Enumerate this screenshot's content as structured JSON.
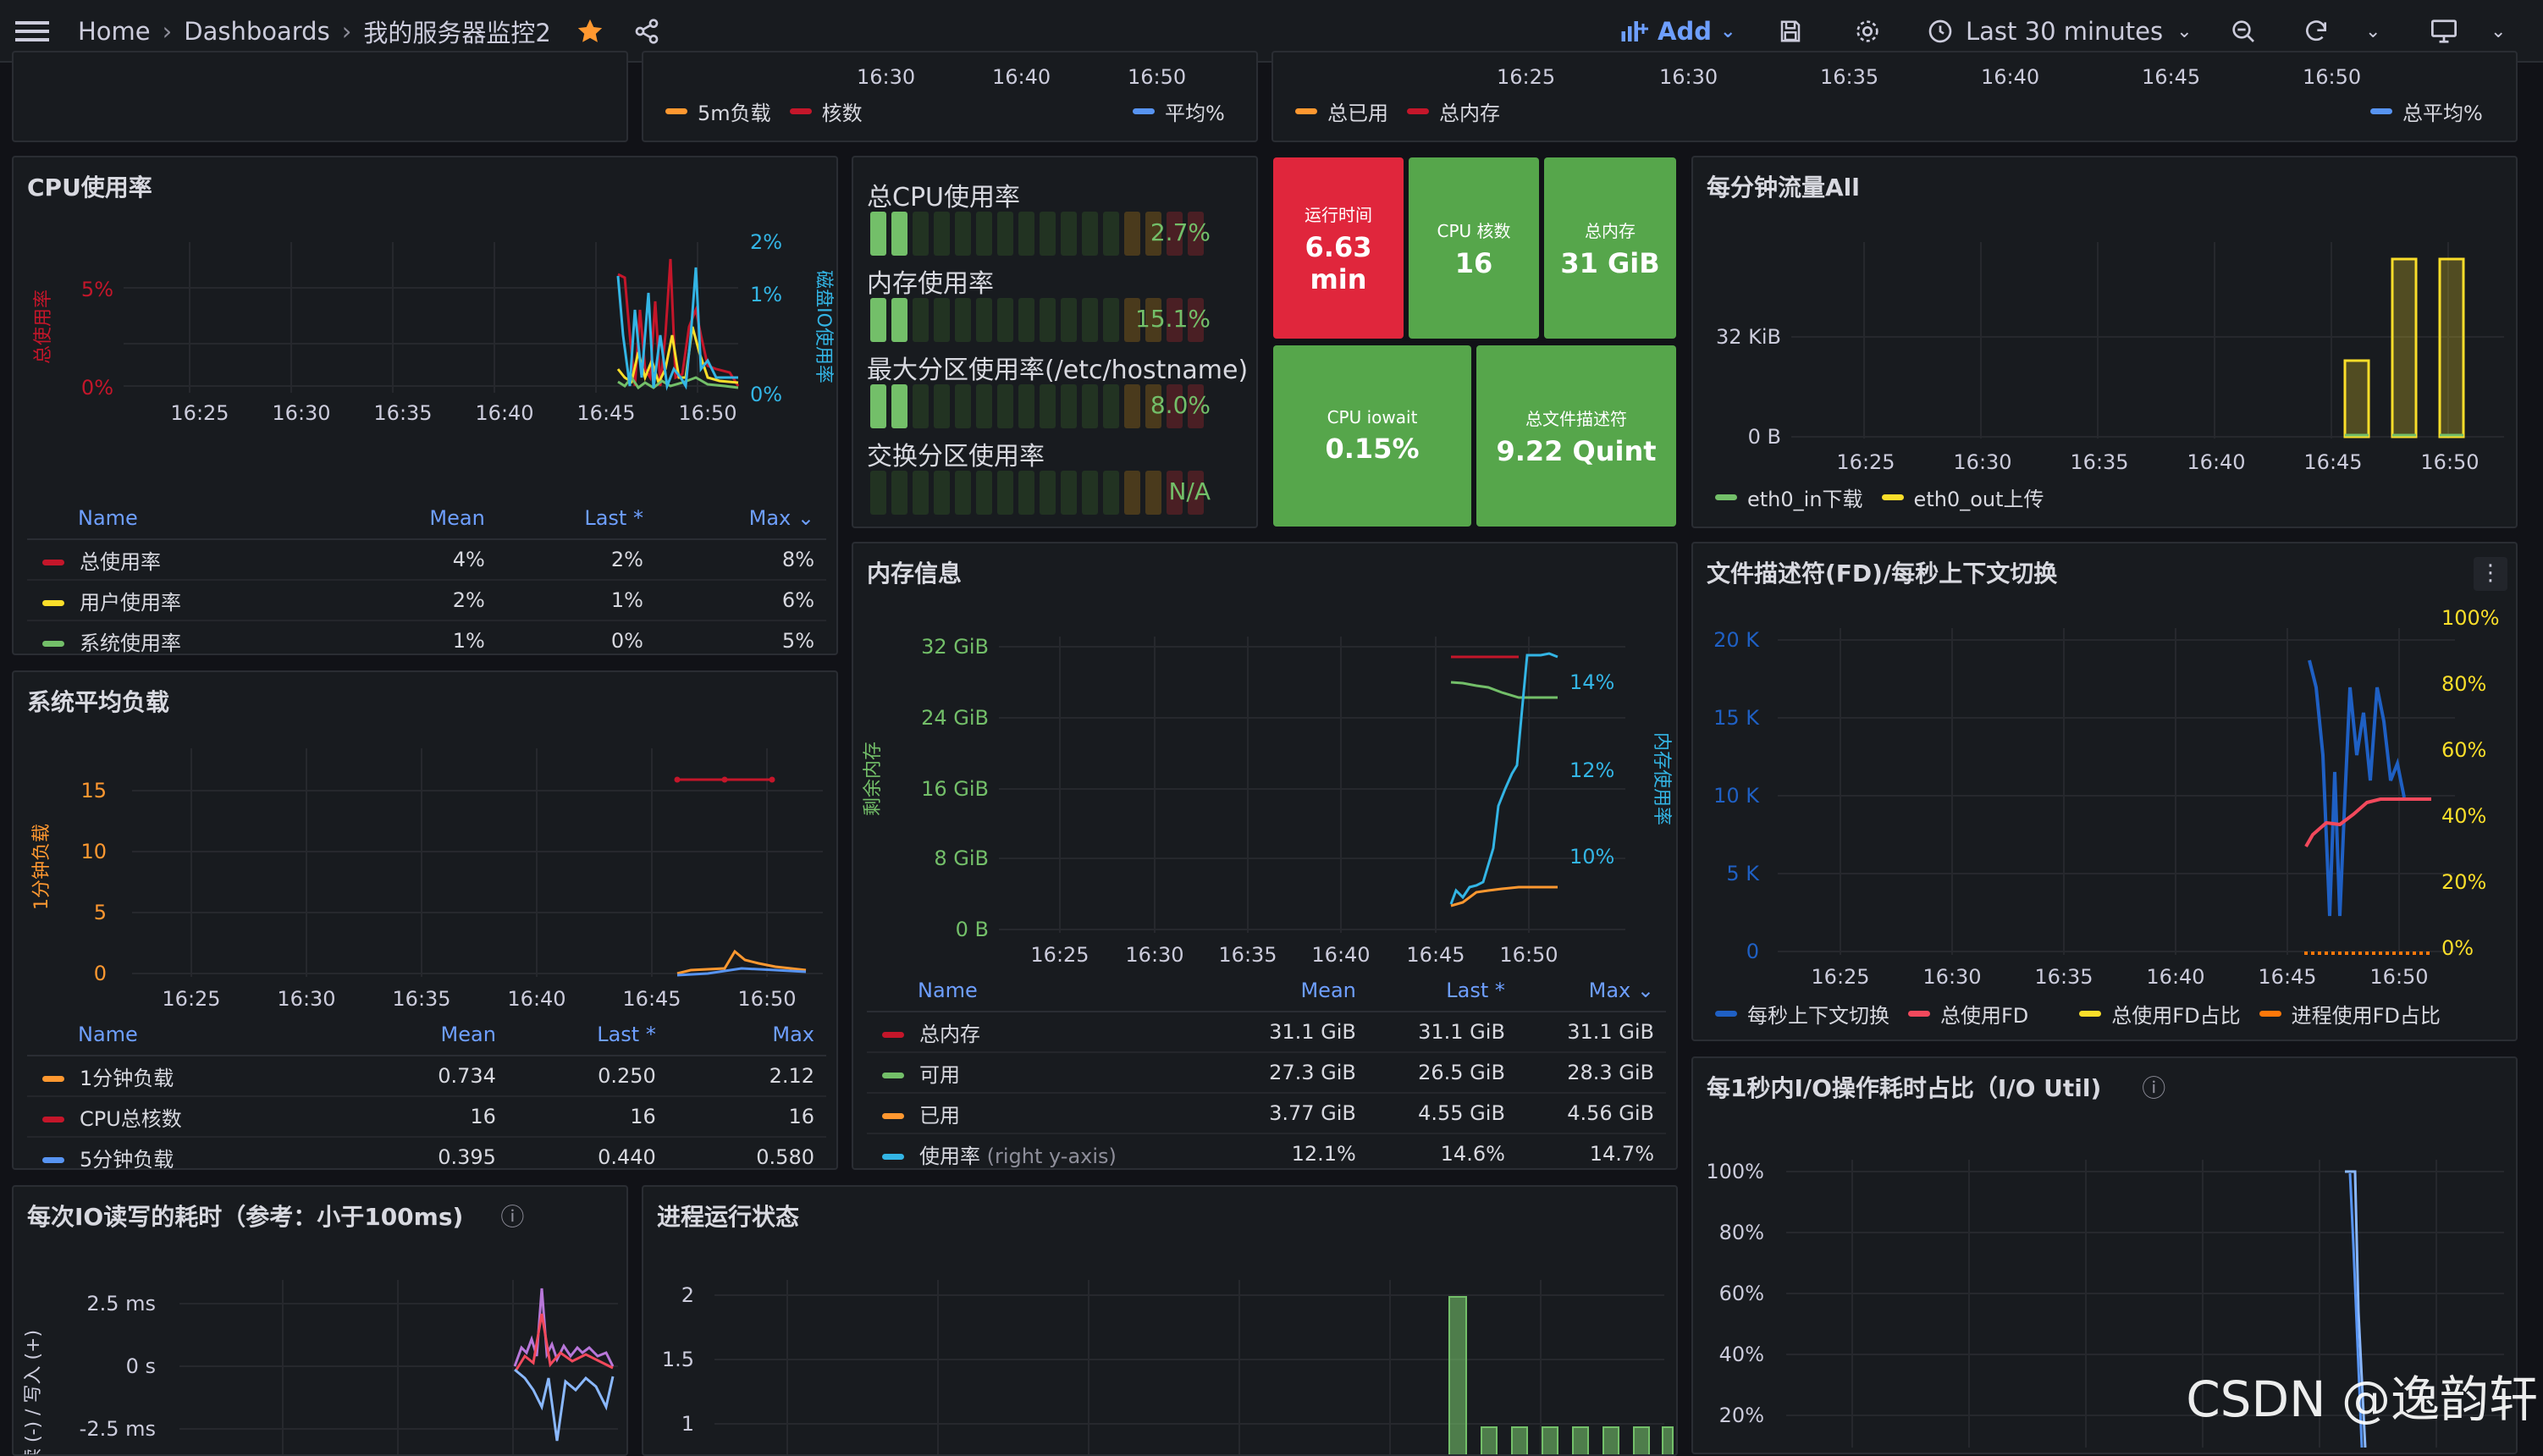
{
  "topbar": {
    "home": "Home",
    "dashboards": "Dashboards",
    "dashboard_title": "我的服务器监控2",
    "add_label": "Add",
    "time_range": "Last 30 minutes"
  },
  "top_strip": {
    "mid_ticks": [
      "16:30",
      "16:40",
      "16:50"
    ],
    "mid_legend": [
      "5m负载",
      "核数",
      "平均%"
    ],
    "right_ticks": [
      "16:25",
      "16:30",
      "16:35",
      "16:40",
      "16:45",
      "16:50"
    ],
    "right_legend": [
      "总已用",
      "总内存",
      "总平均%"
    ]
  },
  "cpu_panel": {
    "title": "CPU使用率",
    "left_axis_label": "总使用率",
    "right_axis_label": "磁盘IO使用率",
    "y_left_ticks": [
      "5%",
      "0%"
    ],
    "y_right_ticks": [
      "2%",
      "1%",
      "0%"
    ],
    "x_ticks": [
      "16:25",
      "16:30",
      "16:35",
      "16:40",
      "16:45",
      "16:50"
    ],
    "table": {
      "headers": [
        "Name",
        "Mean",
        "Last *",
        "Max"
      ],
      "rows": [
        {
          "name": "总使用率",
          "mean": "4%",
          "last": "2%",
          "max": "8%",
          "color": "#c4162a"
        },
        {
          "name": "用户使用率",
          "mean": "2%",
          "last": "1%",
          "max": "6%",
          "color": "#fade2a"
        },
        {
          "name": "系统使用率",
          "mean": "1%",
          "last": "0%",
          "max": "5%",
          "color": "#73bf69"
        }
      ]
    }
  },
  "gauges": {
    "items": [
      {
        "label": "总CPU使用率",
        "value": "2.7%",
        "fill_ratio": 0.027
      },
      {
        "label": "内存使用率",
        "value": "15.1%",
        "fill_ratio": 0.151
      },
      {
        "label": "最大分区使用率(/etc/hostname)",
        "value": "8.0%",
        "fill_ratio": 0.08
      },
      {
        "label": "交换分区使用率",
        "value": "N/A",
        "fill_ratio": 0
      }
    ]
  },
  "stats": {
    "uptime": {
      "label": "运行时间",
      "value": "6.63",
      "unit": "min"
    },
    "cores": {
      "label": "CPU 核数",
      "value": "16"
    },
    "mem_total": {
      "label": "总内存",
      "value": "31 GiB"
    },
    "iowait": {
      "label": "CPU iowait",
      "value": "0.15%"
    },
    "fd_total": {
      "label": "总文件描述符",
      "value": "9.22 Quint"
    }
  },
  "traffic_panel": {
    "title": "每分钟流量All",
    "y_ticks": [
      "32 KiB",
      "0 B"
    ],
    "x_ticks": [
      "16:25",
      "16:30",
      "16:35",
      "16:40",
      "16:45",
      "16:50"
    ],
    "legend": [
      "eth0_in下载",
      "eth0_out上传"
    ]
  },
  "load_panel": {
    "title": "系统平均负载",
    "axis_label": "1分钟负载",
    "y_ticks": [
      "15",
      "10",
      "5",
      "0"
    ],
    "x_ticks": [
      "16:25",
      "16:30",
      "16:35",
      "16:40",
      "16:45",
      "16:50"
    ],
    "table": {
      "headers": [
        "Name",
        "Mean",
        "Last *",
        "Max"
      ],
      "rows": [
        {
          "name": "1分钟负载",
          "mean": "0.734",
          "last": "0.250",
          "max": "2.12",
          "color": "#ff9830"
        },
        {
          "name": "CPU总核数",
          "mean": "16",
          "last": "16",
          "max": "16",
          "color": "#c4162a"
        },
        {
          "name": "5分钟负载",
          "mean": "0.395",
          "last": "0.440",
          "max": "0.580",
          "color": "#5794f2"
        }
      ]
    }
  },
  "memory_panel": {
    "title": "内存信息",
    "left_axis_label": "剩余内存",
    "right_axis_label": "内存使用率",
    "y_left_ticks": [
      "32 GiB",
      "24 GiB",
      "16 GiB",
      "8 GiB",
      "0 B"
    ],
    "y_right_ticks": [
      "14%",
      "12%",
      "10%"
    ],
    "x_ticks": [
      "16:25",
      "16:30",
      "16:35",
      "16:40",
      "16:45",
      "16:50"
    ],
    "table": {
      "headers": [
        "Name",
        "Mean",
        "Last *",
        "Max"
      ],
      "rows": [
        {
          "name": "总内存",
          "note": "",
          "mean": "31.1 GiB",
          "last": "31.1 GiB",
          "max": "31.1 GiB",
          "color": "#c4162a"
        },
        {
          "name": "可用",
          "note": "",
          "mean": "27.3 GiB",
          "last": "26.5 GiB",
          "max": "28.3 GiB",
          "color": "#73bf69"
        },
        {
          "name": "已用",
          "note": "",
          "mean": "3.77 GiB",
          "last": "4.55 GiB",
          "max": "4.56 GiB",
          "color": "#ff9830"
        },
        {
          "name": "使用率",
          "note": "(right y-axis)",
          "mean": "12.1%",
          "last": "14.6%",
          "max": "14.7%",
          "color": "#33b5e5"
        }
      ]
    }
  },
  "fd_panel": {
    "title": "文件描述符(FD)/每秒上下文切换",
    "y_left_ticks": [
      "20 K",
      "15 K",
      "10 K",
      "5 K",
      "0"
    ],
    "y_right_ticks": [
      "100%",
      "80%",
      "60%",
      "40%",
      "20%",
      "0%"
    ],
    "x_ticks": [
      "16:25",
      "16:30",
      "16:35",
      "16:40",
      "16:45",
      "16:50"
    ],
    "legend": [
      "每秒上下文切换",
      "总使用FD",
      "总使用FD占比",
      "进程使用FD占比"
    ]
  },
  "io_util_panel": {
    "title": "每1秒内I/O操作耗时占比（I/O Util)",
    "y_ticks": [
      "100%",
      "80%",
      "60%",
      "40%",
      "20%"
    ]
  },
  "io_latency_panel": {
    "title": "每次IO读写的耗时（参考：小于100ms)",
    "axis_label": "读 (-) / 写入 (+)",
    "y_ticks": [
      "2.5 ms",
      "0 s",
      "-2.5 ms"
    ]
  },
  "process_panel": {
    "title": "进程运行状态",
    "y_ticks": [
      "2",
      "1.5",
      "1"
    ]
  },
  "watermark": "CSDN @逸韵轩"
}
